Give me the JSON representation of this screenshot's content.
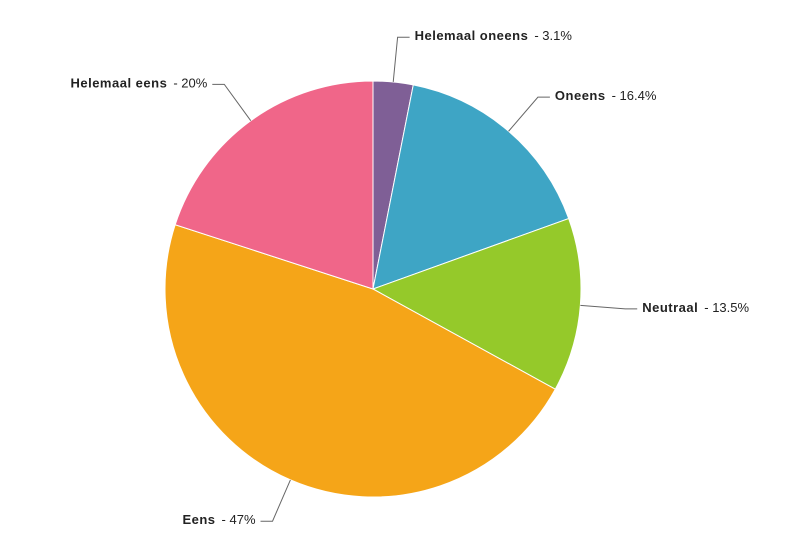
{
  "chart_data": {
    "type": "pie",
    "categories": [
      "Helemaal oneens",
      "Oneens",
      "Neutraal",
      "Eens",
      "Helemaal eens"
    ],
    "values": [
      3.1,
      16.4,
      13.5,
      47,
      20
    ],
    "value_labels": [
      "- 3.1%",
      "- 16.4%",
      "- 13.5%",
      "- 47%",
      "- 20%"
    ],
    "colors": [
      "#7f5f96",
      "#3ea5c5",
      "#95c92a",
      "#f5a518",
      "#f06689"
    ]
  }
}
